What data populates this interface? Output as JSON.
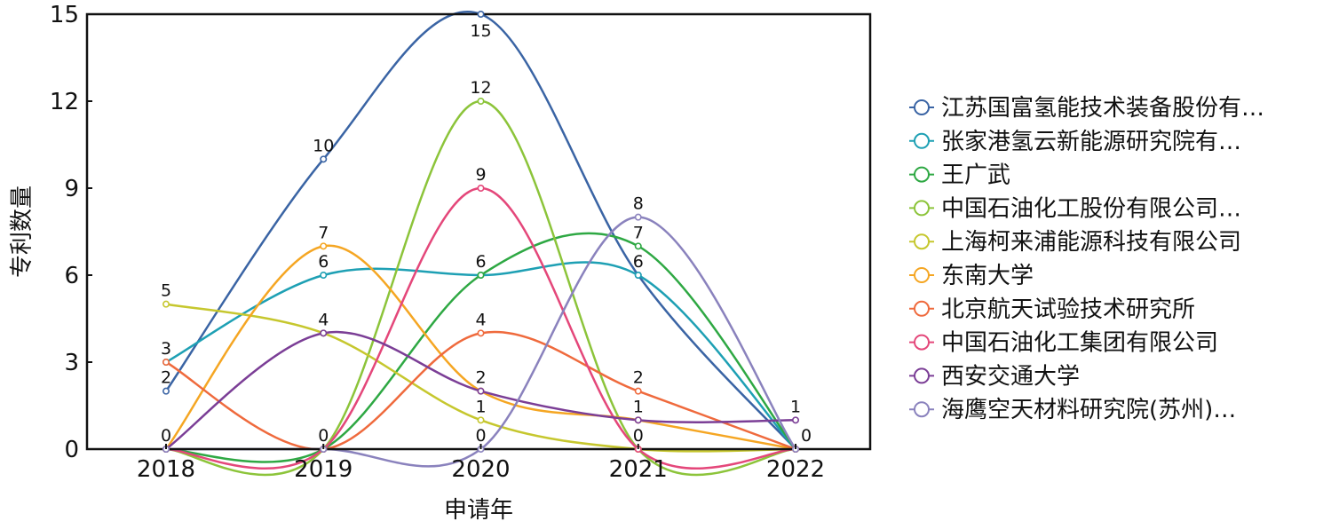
{
  "chart_data": {
    "type": "line",
    "title": "",
    "xlabel": "申请年",
    "ylabel": "专利数量",
    "categories": [
      "2018",
      "2019",
      "2020",
      "2021",
      "2022"
    ],
    "ylim": [
      0,
      15
    ],
    "yticks": [
      "0",
      "3",
      "6",
      "9",
      "12",
      "15"
    ],
    "legend_position": "right",
    "series": [
      {
        "name": "江苏国富氢能技术装备股份有…",
        "color": "#3a64a4",
        "values": [
          2,
          10,
          15,
          6,
          0
        ]
      },
      {
        "name": "张家港氢云新能源研究院有…",
        "color": "#1ea0b4",
        "values": [
          3,
          6,
          6,
          6,
          0
        ]
      },
      {
        "name": "王广武",
        "color": "#2ea843",
        "values": [
          0,
          0,
          6,
          7,
          0
        ]
      },
      {
        "name": "中国石油化工股份有限公司…",
        "color": "#8cc43a",
        "values": [
          0,
          0,
          12,
          0,
          0
        ]
      },
      {
        "name": "上海柯来浦能源科技有限公司",
        "color": "#c6c72e",
        "values": [
          5,
          4,
          1,
          0,
          0
        ]
      },
      {
        "name": "东南大学",
        "color": "#f5a623",
        "values": [
          0,
          7,
          2,
          1,
          0
        ]
      },
      {
        "name": "北京航天试验技术研究所",
        "color": "#ef6a3d",
        "values": [
          3,
          0,
          4,
          2,
          0
        ]
      },
      {
        "name": "中国石油化工集团有限公司",
        "color": "#e4477a",
        "values": [
          0,
          0,
          9,
          0,
          0
        ]
      },
      {
        "name": "西安交通大学",
        "color": "#7b3e96",
        "values": [
          0,
          4,
          2,
          1,
          1
        ]
      },
      {
        "name": "海鹰空天材料研究院(苏州)…",
        "color": "#8a82bd",
        "values": [
          0,
          0,
          0,
          8,
          0
        ]
      }
    ],
    "data_labels": [
      {
        "category": "2018",
        "value": 5,
        "text": "5"
      },
      {
        "category": "2018",
        "value": 3,
        "text": "3"
      },
      {
        "category": "2018",
        "value": 2,
        "text": "2"
      },
      {
        "category": "2018",
        "value": 0,
        "text": "0"
      },
      {
        "category": "2019",
        "value": 10,
        "text": "10"
      },
      {
        "category": "2019",
        "value": 7,
        "text": "7"
      },
      {
        "category": "2019",
        "value": 6,
        "text": "6"
      },
      {
        "category": "2019",
        "value": 4,
        "text": "4"
      },
      {
        "category": "2019",
        "value": 0,
        "text": "0"
      },
      {
        "category": "2020",
        "value": 15,
        "text": "15",
        "below": true
      },
      {
        "category": "2020",
        "value": 12,
        "text": "12"
      },
      {
        "category": "2020",
        "value": 9,
        "text": "9"
      },
      {
        "category": "2020",
        "value": 6,
        "text": "6"
      },
      {
        "category": "2020",
        "value": 4,
        "text": "4"
      },
      {
        "category": "2020",
        "value": 2,
        "text": "2"
      },
      {
        "category": "2020",
        "value": 1,
        "text": "1"
      },
      {
        "category": "2020",
        "value": 0,
        "text": "0"
      },
      {
        "category": "2021",
        "value": 8,
        "text": "8"
      },
      {
        "category": "2021",
        "value": 7,
        "text": "7"
      },
      {
        "category": "2021",
        "value": 6,
        "text": "6"
      },
      {
        "category": "2021",
        "value": 2,
        "text": "2"
      },
      {
        "category": "2021",
        "value": 1,
        "text": "1"
      },
      {
        "category": "2021",
        "value": 0,
        "text": "0"
      },
      {
        "category": "2022",
        "value": 1,
        "text": "1"
      },
      {
        "category": "2022",
        "value": 0,
        "text": "0",
        "right": true
      }
    ]
  }
}
